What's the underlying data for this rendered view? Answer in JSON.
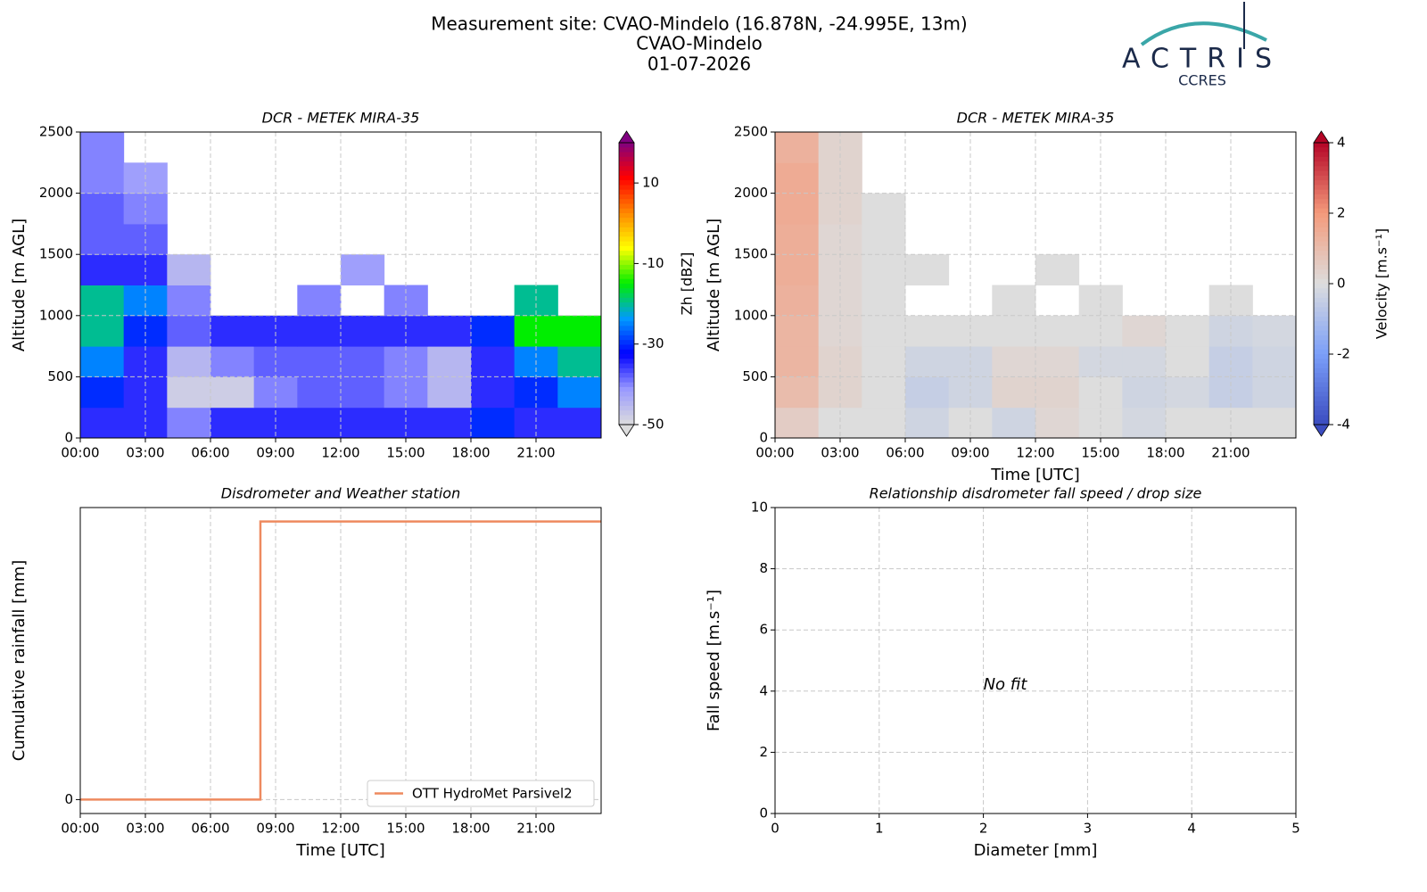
{
  "title": [
    "Measurement site: CVAO-Mindelo (16.878N, -24.995E, 13m)",
    "CVAO-Mindelo",
    "01-07-2026"
  ],
  "logo": {
    "name": "ACTRIS",
    "subtitle": "CCRES"
  },
  "chart_data": [
    {
      "type": "heatmap",
      "title": "DCR - METEK MIRA-35",
      "y_label": "Altitude [m AGL]",
      "grid": true,
      "xlim": [
        0,
        24
      ],
      "xticks": [
        {
          "value": 0,
          "label": "00:00"
        },
        {
          "value": 3,
          "label": "03:00"
        },
        {
          "value": 6,
          "label": "06:00"
        },
        {
          "value": 9,
          "label": "09:00"
        },
        {
          "value": 12,
          "label": "12:00"
        },
        {
          "value": 15,
          "label": "15:00"
        },
        {
          "value": 18,
          "label": "18:00"
        },
        {
          "value": 21,
          "label": "21:00"
        }
      ],
      "ylim": [
        0,
        2500
      ],
      "yticks": [
        0,
        500,
        1000,
        1500,
        2000,
        2500
      ],
      "x": [
        0,
        2,
        4,
        6,
        8,
        10,
        12,
        14,
        16,
        18,
        20,
        22,
        24
      ],
      "y": [
        0,
        250,
        500,
        750,
        1000,
        1250,
        1500,
        1750,
        2000,
        2250,
        2500
      ],
      "z": [
        [
          -35,
          -35,
          -40,
          -35,
          -35,
          -35,
          -35,
          -35,
          -35,
          -30,
          -35,
          -35
        ],
        [
          -30,
          -35,
          -48,
          -48,
          -40,
          -38,
          -38,
          -40,
          -45,
          -35,
          -30,
          -25
        ],
        [
          -25,
          -35,
          -45,
          -40,
          -38,
          -38,
          -38,
          -40,
          -45,
          -35,
          -25,
          -20
        ],
        [
          -20,
          -30,
          -38,
          -35,
          -35,
          -35,
          -35,
          -35,
          -35,
          -30,
          -15,
          -15
        ],
        [
          -20,
          -25,
          -40,
          null,
          null,
          -40,
          null,
          -40,
          null,
          null,
          -20,
          null
        ],
        [
          -35,
          -35,
          -45,
          null,
          null,
          null,
          -42,
          null,
          null,
          null,
          null,
          null
        ],
        [
          -38,
          -38,
          null,
          null,
          null,
          null,
          null,
          null,
          null,
          null,
          null,
          null
        ],
        [
          -38,
          -40,
          null,
          null,
          null,
          null,
          null,
          null,
          null,
          null,
          null,
          null
        ],
        [
          -40,
          -42,
          null,
          null,
          null,
          null,
          null,
          null,
          null,
          null,
          null,
          null
        ],
        [
          -40,
          null,
          null,
          null,
          null,
          null,
          null,
          null,
          null,
          null,
          null,
          null
        ]
      ],
      "colorbar": {
        "label": "Zh [dBZ]",
        "lim": [
          -50,
          20
        ],
        "ticks": [
          -50,
          -30,
          -10,
          10
        ],
        "colormap": [
          "#dddddd",
          "#9999ff",
          "#0000ff",
          "#0099ff",
          "#00ee00",
          "#ffff00",
          "#ff8800",
          "#ff0000",
          "#800080"
        ]
      }
    },
    {
      "type": "heatmap",
      "title": "DCR - METEK MIRA-35",
      "x_label": "Time [UTC]",
      "y_label": "Altitude [m AGL]",
      "grid": true,
      "xlim": [
        0,
        24
      ],
      "xticks": [
        {
          "value": 0,
          "label": "00:00"
        },
        {
          "value": 3,
          "label": "03:00"
        },
        {
          "value": 6,
          "label": "06:00"
        },
        {
          "value": 9,
          "label": "09:00"
        },
        {
          "value": 12,
          "label": "12:00"
        },
        {
          "value": 15,
          "label": "15:00"
        },
        {
          "value": 18,
          "label": "18:00"
        },
        {
          "value": 21,
          "label": "21:00"
        }
      ],
      "ylim": [
        0,
        2500
      ],
      "yticks": [
        0,
        500,
        1000,
        1500,
        2000,
        2500
      ],
      "x": [
        0,
        2,
        4,
        6,
        8,
        10,
        12,
        14,
        16,
        18,
        20,
        22,
        24
      ],
      "y": [
        0,
        250,
        500,
        750,
        1000,
        1250,
        1500,
        1750,
        2000,
        2250,
        2500
      ],
      "z": [
        [
          0.5,
          0,
          0,
          -0.3,
          0,
          -0.3,
          0.2,
          0,
          -0.2,
          0,
          0,
          0
        ],
        [
          1,
          0.3,
          0,
          -0.5,
          -0.3,
          0.3,
          0.3,
          0,
          -0.3,
          -0.2,
          -0.5,
          -0.3
        ],
        [
          1.2,
          0.3,
          0,
          -0.3,
          -0.3,
          0.2,
          0.2,
          -0.2,
          -0.2,
          0,
          -0.5,
          -0.3
        ],
        [
          1.2,
          0.2,
          0,
          0,
          0,
          0,
          0,
          0,
          0.2,
          0,
          -0.3,
          -0.2
        ],
        [
          1.3,
          0.2,
          0,
          null,
          null,
          0,
          null,
          0,
          null,
          null,
          0,
          null
        ],
        [
          1.4,
          0.2,
          0,
          0,
          null,
          null,
          0,
          null,
          null,
          null,
          null,
          null
        ],
        [
          1.4,
          0.2,
          0,
          null,
          null,
          null,
          null,
          null,
          null,
          null,
          null,
          null
        ],
        [
          1.5,
          0.3,
          0,
          null,
          null,
          null,
          null,
          null,
          null,
          null,
          null,
          null
        ],
        [
          1.5,
          0.3,
          null,
          null,
          null,
          null,
          null,
          null,
          null,
          null,
          null,
          null
        ],
        [
          1.3,
          0.3,
          null,
          null,
          null,
          null,
          null,
          null,
          null,
          null,
          null,
          null
        ]
      ],
      "colorbar": {
        "label": "Velocity [m.s⁻¹]",
        "lim": [
          -4,
          4
        ],
        "ticks": [
          -4,
          -2,
          0,
          2,
          4
        ],
        "colormap": [
          "#3b4cc0",
          "#7b9ff9",
          "#dddddd",
          "#f49a7b",
          "#b40426"
        ]
      }
    },
    {
      "type": "line",
      "title": "Disdrometer and Weather station",
      "x_label": "Time [UTC]",
      "y_label": "Cumulative rainfall [mm]",
      "grid": true,
      "legend": "lower right",
      "xlim": [
        0,
        24
      ],
      "xticks": [
        {
          "value": 0,
          "label": "00:00"
        },
        {
          "value": 3,
          "label": "03:00"
        },
        {
          "value": 6,
          "label": "06:00"
        },
        {
          "value": 9,
          "label": "09:00"
        },
        {
          "value": 12,
          "label": "12:00"
        },
        {
          "value": 15,
          "label": "15:00"
        },
        {
          "value": 18,
          "label": "18:00"
        },
        {
          "value": 21,
          "label": "21:00"
        }
      ],
      "ylim": [
        -0.05,
        1.05
      ],
      "yticks": [
        0
      ],
      "x": [
        0,
        8.3,
        8.3,
        24
      ],
      "series": [
        {
          "name": "OTT HydroMet Parsivel2",
          "color": "#ee8a5f",
          "values": [
            0,
            0,
            1,
            1
          ]
        }
      ]
    },
    {
      "type": "scatter",
      "title": "Relationship disdrometer fall speed / drop size",
      "x_label": "Diameter [mm]",
      "y_label": "Fall speed [m.s⁻¹]",
      "grid": true,
      "annotation": "No fit",
      "xlim": [
        0,
        5
      ],
      "xticks": [
        0,
        1,
        2,
        3,
        4,
        5
      ],
      "ylim": [
        0,
        10
      ],
      "yticks": [
        0,
        2,
        4,
        6,
        8,
        10
      ]
    }
  ]
}
